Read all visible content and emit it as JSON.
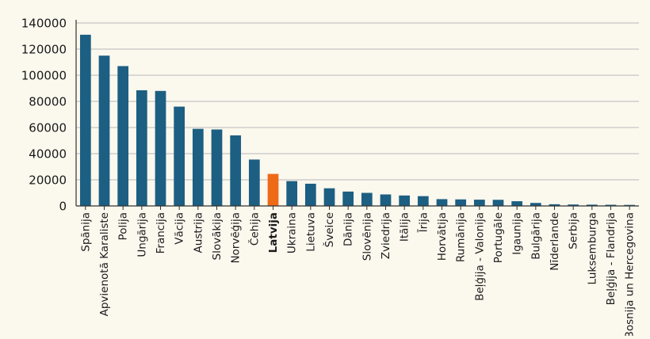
{
  "chart_data": {
    "type": "bar",
    "title": "",
    "xlabel": "",
    "ylabel": "",
    "ylim": [
      0,
      140000
    ],
    "yticks": [
      0,
      20000,
      40000,
      60000,
      80000,
      100000,
      120000,
      140000
    ],
    "grid": "horizontal",
    "legend": "none",
    "colors": {
      "bar": "#1c5f82",
      "highlight": "#ef6a17",
      "grid": "#b9b9b9",
      "axis": "#333333",
      "background": "#fbf8ee"
    },
    "highlight_category": "Latvija",
    "categories": [
      "Spānija",
      "Apvienotā Karaliste",
      "Polija",
      "Ungārija",
      "Francija",
      "Vācija",
      "Austrija",
      "Slovākija",
      "Norvēģija",
      "Čehija",
      "Latvija",
      "Ukraina",
      "Lietuva",
      "Šveice",
      "Dānija",
      "Slovēnija",
      "Zviedrija",
      "Itālija",
      "Īrija",
      "Horvātija",
      "Rumānija",
      "Beļģija - Valonija",
      "Portugāle",
      "Igaunija",
      "Bulgārija",
      "Nīderlande",
      "Serbija",
      "Luksemburga",
      "Beļģija - Flandrija",
      "Bosnija un Hercegovina"
    ],
    "values": [
      131000,
      115000,
      107000,
      88500,
      88000,
      76000,
      59000,
      58500,
      54000,
      35500,
      24500,
      19000,
      17000,
      13500,
      11000,
      10000,
      8800,
      8000,
      7500,
      5200,
      5000,
      4800,
      4700,
      3600,
      2300,
      1300,
      1100,
      1000,
      900,
      800
    ]
  }
}
